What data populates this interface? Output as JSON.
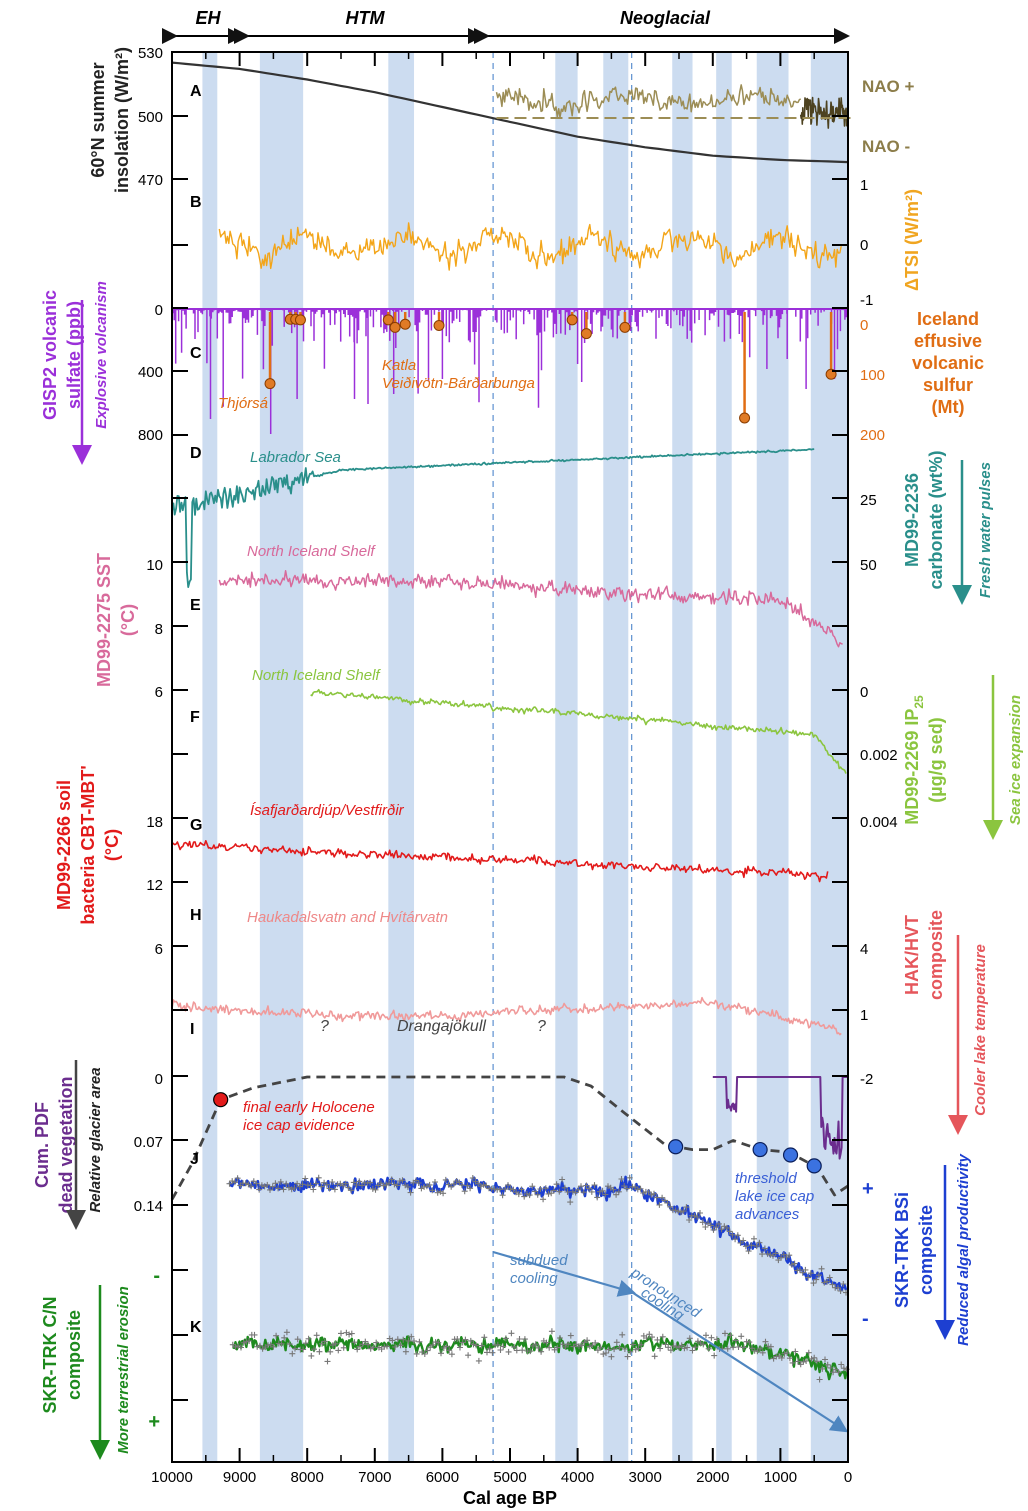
{
  "chart_data": {
    "type": "line",
    "xlabel": "Cal age BP",
    "xlim": [
      10000,
      0
    ],
    "x_ticks": [
      "10000",
      "9000",
      "8000",
      "7000",
      "6000",
      "5000",
      "4000",
      "3000",
      "2000",
      "1000",
      "0"
    ],
    "periods": [
      {
        "label": "EH",
        "from": 10000,
        "to": 9000
      },
      {
        "label": "HTM",
        "from": 9000,
        "to": 5500
      },
      {
        "label": "Neoglacial",
        "from": 5500,
        "to": 0
      }
    ],
    "cold_bands": [
      [
        9550,
        9330
      ],
      [
        8700,
        8060
      ],
      [
        6800,
        6420
      ],
      [
        4330,
        4000
      ],
      [
        3620,
        3250
      ],
      [
        2600,
        2300
      ],
      [
        1950,
        1720
      ],
      [
        1350,
        880
      ],
      [
        550,
        0
      ]
    ],
    "dashed_lines": [
      5250,
      3200
    ],
    "panels": {
      "A": {
        "letter": "A"
      },
      "B": {
        "letter": "B"
      },
      "C": {
        "letter": "C"
      },
      "D": {
        "letter": "D"
      },
      "E": {
        "letter": "E"
      },
      "F": {
        "letter": "F"
      },
      "G": {
        "letter": "G"
      },
      "H": {
        "letter": "H"
      },
      "I": {
        "letter": "I"
      },
      "J": {
        "letter": "J"
      },
      "K": {
        "letter": "K"
      }
    },
    "left_axes": {
      "insolation": {
        "ticks": [
          "530",
          "500",
          "470"
        ],
        "label1": "60°N summer",
        "label2": "insolation (W/m²)"
      },
      "sulfate": {
        "ticks": [
          "0",
          "400",
          "800"
        ],
        "label1": "GISP2 volcanic",
        "label2": "sulfate (ppb)",
        "arrow_label": "Explosive volcanism"
      },
      "sst": {
        "ticks": [
          "10",
          "8",
          "6"
        ],
        "label1": "MD99-2275 SST",
        "label2": "(°C)"
      },
      "soil": {
        "ticks": [
          "18",
          "12",
          "6"
        ],
        "label1": "MD99-2266 soil",
        "label2": "bacteria CBT-MBT'",
        "label3": "(°C)"
      },
      "pdf": {
        "ticks": [
          "0",
          "0.07",
          "0.14"
        ],
        "label1": "Cum. PDF",
        "label2": "dead vegetation",
        "arrow_label": "Relative glacier area"
      },
      "cn": {
        "ticks": [
          "-",
          "+"
        ],
        "label1": "SKR-TRK C/N",
        "label2": "composite",
        "arrow_label": "More terrestrial erosion"
      }
    },
    "right_axes": {
      "nao": {
        "plus": "NAO +",
        "minus": "NAO -"
      },
      "tsi": {
        "ticks": [
          "1",
          "0",
          "-1"
        ],
        "label": "ΔTSI (W/m²)"
      },
      "iceland": {
        "ticks": [
          "0",
          "100",
          "200"
        ],
        "label1": "Iceland",
        "label2": "effusive",
        "label3": "volcanic",
        "label4": "sulfur",
        "label5": "(Mt)"
      },
      "carbonate": {
        "ticks": [
          "25",
          "50"
        ],
        "label1": "MD99-2236",
        "label2": "carbonate (wt%)",
        "arrow_label": "Fresh water pulses"
      },
      "ip25": {
        "ticks": [
          "0",
          "0.002",
          "0.004"
        ],
        "label1": "MD99-2269 IP",
        "label1_sub": "25",
        "label2": "(µg/g sed)",
        "arrow_label": "Sea ice expansion"
      },
      "lake": {
        "ticks": [
          "4",
          "1",
          "-2"
        ],
        "label1": "HAK/HVT",
        "label2": "composite",
        "arrow_label": "Cooler lake temperature"
      },
      "bsi": {
        "ticks": [
          "+",
          "-"
        ],
        "label1": "SKR-TRK BSi",
        "label2": "composite",
        "arrow_label": "Reduced algal productivity"
      }
    },
    "annotations": {
      "thjorsa": "Thjórsá",
      "katla1": "Katla",
      "katla2": "Veiðivötn-Bárðarbunga",
      "labrador": "Labrador Sea",
      "nis1": "North Iceland Shelf",
      "nis2": "North Iceland Shelf",
      "isaf": "Ísafjarðardjúp/Vestfirðir",
      "hauk": "Haukadalsvatn and Hvítárvatn",
      "dranga": "Drangajökull",
      "q1": "?",
      "q2": "?",
      "final1": "final early Holocene",
      "final2": "ice cap evidence",
      "thr1": "threshold",
      "thr2": "lake ice cap",
      "thr3": "advances",
      "sub1": "subdued",
      "sub2": "cooling",
      "pro1": "pronounced",
      "pro2": "cooling"
    },
    "insolation": {
      "x": [
        10000,
        9000,
        8000,
        7000,
        6000,
        5000,
        4000,
        3000,
        2000,
        1000,
        0
      ],
      "y": [
        525,
        522,
        517,
        511,
        504,
        497,
        490,
        485,
        481,
        479,
        478
      ]
    },
    "iceland_sulfur": {
      "x": [
        8550,
        8250,
        8170,
        8100,
        6800,
        6700,
        6550,
        6050,
        4080,
        3870,
        3300,
        1530,
        250
      ],
      "y": [
        105,
        2,
        2,
        3,
        3,
        15,
        10,
        12,
        3,
        25,
        15,
        160,
        90
      ]
    },
    "drangajokull": {
      "x": [
        10000,
        9700,
        9280,
        8800,
        8000,
        7950,
        6400,
        4600,
        4200,
        3800,
        3300,
        2700,
        2300,
        2000,
        1700,
        1300,
        1000,
        700,
        450,
        200,
        0
      ],
      "y": [
        0.135,
        0.095,
        0.025,
        0.012,
        0.0,
        0.0,
        0.0,
        0.0,
        0.0,
        0.01,
        0.04,
        0.075,
        0.08,
        0.08,
        0.07,
        0.08,
        0.082,
        0.09,
        0.1,
        0.13,
        0.12
      ]
    },
    "threshold_advances": [
      2550,
      1300,
      850,
      500
    ],
    "final_ice_cap": 9280
  }
}
